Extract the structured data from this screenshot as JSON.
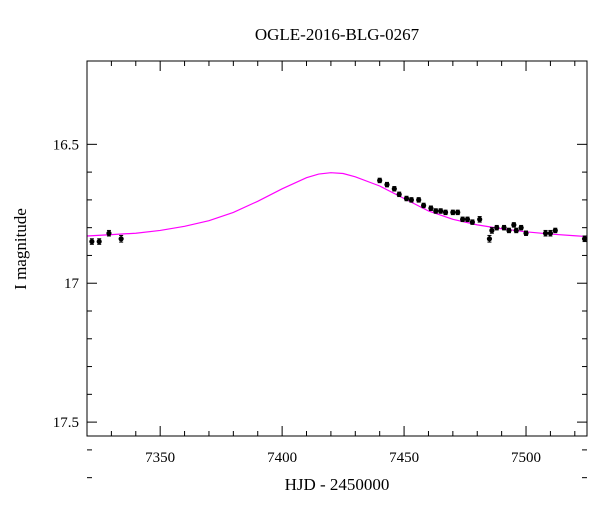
{
  "chart_data": {
    "type": "scatter",
    "title": "OGLE-2016-BLG-0267",
    "xlabel": "HJD - 2450000",
    "ylabel": "I magnitude",
    "xlim": [
      7320,
      7525
    ],
    "ylim": [
      17.55,
      16.2
    ],
    "y_inverted": true,
    "x_ticks": [
      7350,
      7400,
      7450,
      7500
    ],
    "x_tick_labels": [
      "7350",
      "7400",
      "7450",
      "7500"
    ],
    "y_ticks": [
      16.5,
      17,
      17.5
    ],
    "y_tick_labels": [
      "16.5",
      "17",
      "17.5"
    ],
    "grid": false,
    "colors": {
      "model": "#ff00ff",
      "points": "#000000",
      "axes": "#000000"
    },
    "model": {
      "name": "",
      "x": [
        7320,
        7330,
        7340,
        7350,
        7360,
        7370,
        7380,
        7390,
        7400,
        7410,
        7415,
        7420,
        7425,
        7430,
        7440,
        7450,
        7460,
        7470,
        7480,
        7490,
        7500,
        7510,
        7520,
        7525
      ],
      "y": [
        16.83,
        16.825,
        16.82,
        16.81,
        16.795,
        16.775,
        16.745,
        16.705,
        16.66,
        16.62,
        16.607,
        16.602,
        16.605,
        16.617,
        16.65,
        16.695,
        16.74,
        16.77,
        16.79,
        16.804,
        16.815,
        16.823,
        16.829,
        16.832
      ]
    },
    "series": [
      {
        "name": "",
        "x": [
          7322,
          7325,
          7329,
          7334,
          7440,
          7443,
          7446,
          7448,
          7451,
          7453,
          7456,
          7458,
          7461,
          7463,
          7465,
          7467,
          7470,
          7472,
          7474,
          7476,
          7478,
          7481,
          7485,
          7486,
          7488,
          7491,
          7493,
          7495,
          7496,
          7498,
          7500,
          7508,
          7510,
          7512,
          7524
        ],
        "y": [
          16.85,
          16.85,
          16.82,
          16.84,
          16.63,
          16.645,
          16.66,
          16.68,
          16.695,
          16.7,
          16.7,
          16.72,
          16.73,
          16.74,
          16.74,
          16.745,
          16.745,
          16.745,
          16.77,
          16.77,
          16.78,
          16.77,
          16.84,
          16.81,
          16.8,
          16.8,
          16.81,
          16.79,
          16.81,
          16.8,
          16.82,
          16.82,
          16.82,
          16.81,
          16.84
        ],
        "err": [
          0.01,
          0.01,
          0.01,
          0.012,
          0.008,
          0.008,
          0.008,
          0.008,
          0.008,
          0.008,
          0.008,
          0.008,
          0.008,
          0.008,
          0.008,
          0.008,
          0.008,
          0.008,
          0.008,
          0.008,
          0.008,
          0.01,
          0.012,
          0.01,
          0.008,
          0.008,
          0.008,
          0.008,
          0.008,
          0.008,
          0.008,
          0.01,
          0.01,
          0.008,
          0.01
        ]
      }
    ]
  }
}
